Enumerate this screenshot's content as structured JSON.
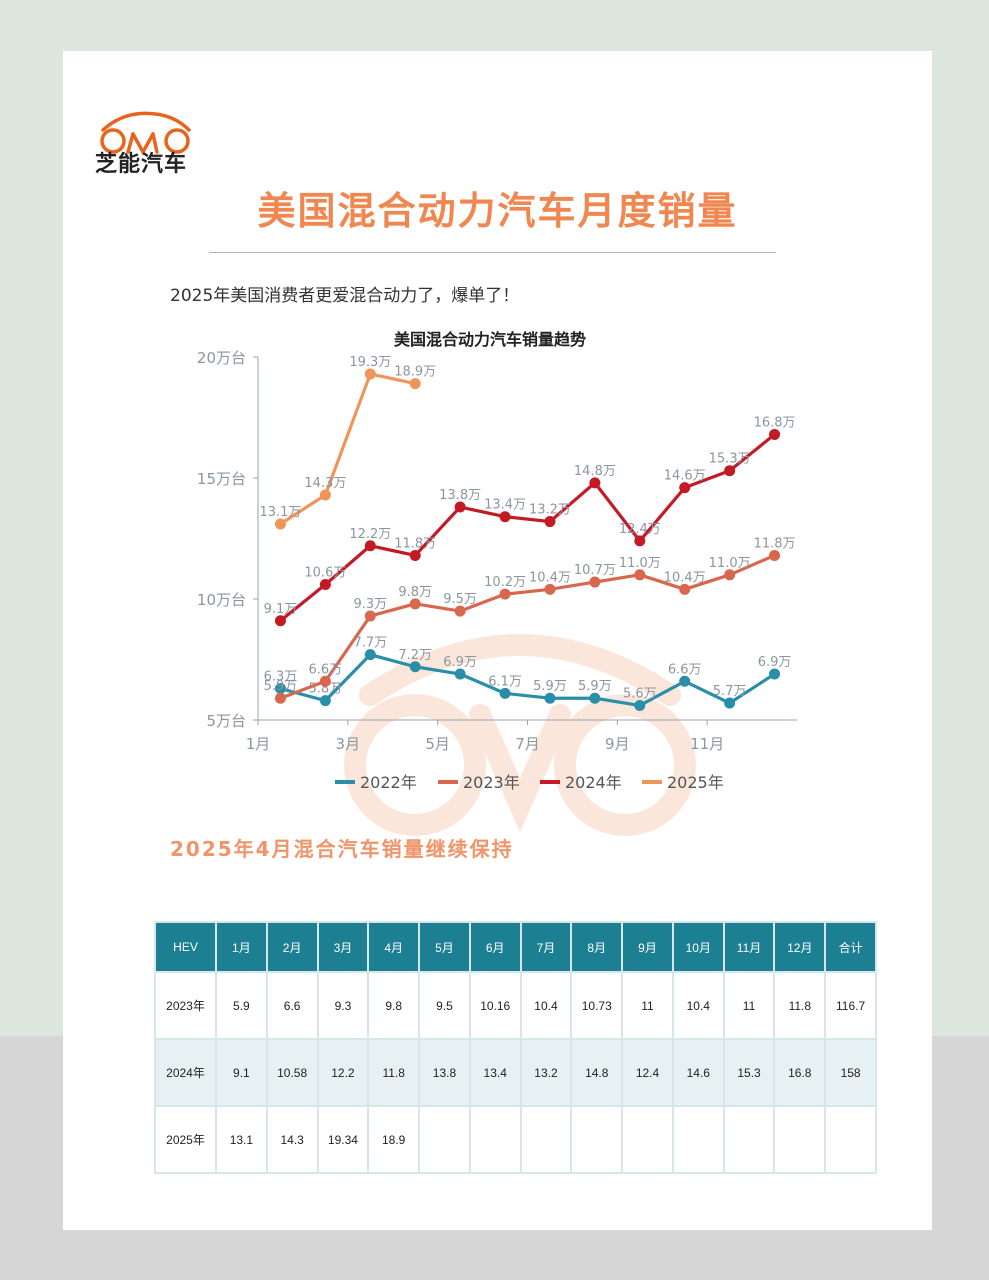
{
  "brand": {
    "name": "芝能汽车"
  },
  "header": {
    "title": "美国混合动力汽车月度销量",
    "subtitle": "2025年美国消费者更爱混合动力了，爆单了！"
  },
  "colors": {
    "accent": "#f08650",
    "series_2022": "#2a8ea8",
    "series_2023": "#d8674e",
    "series_2024": "#c41a24",
    "series_2025": "#f0955a",
    "table_header": "#1d7f92"
  },
  "chart_data": {
    "type": "line",
    "title": "美国混合动力汽车销量趋势",
    "ylim": [
      5,
      20
    ],
    "xlim": [
      1,
      13
    ],
    "y_ticks": [
      {
        "value": 5,
        "label": "5万台"
      },
      {
        "value": 10,
        "label": "10万台"
      },
      {
        "value": 15,
        "label": "15万台"
      },
      {
        "value": 20,
        "label": "20万台"
      }
    ],
    "x_ticks": [
      {
        "value": 1,
        "label": "1月"
      },
      {
        "value": 3,
        "label": "3月"
      },
      {
        "value": 5,
        "label": "5月"
      },
      {
        "value": 7,
        "label": "7月"
      },
      {
        "value": 9,
        "label": "9月"
      },
      {
        "value": 11,
        "label": "11月"
      }
    ],
    "grid": false,
    "legend": "bottom",
    "series": [
      {
        "name": "2022年",
        "color": "#2a8ea8",
        "x": [
          1.5,
          2.5,
          3.5,
          4.5,
          5.5,
          6.5,
          7.5,
          8.5,
          9.5,
          10.5,
          11.5,
          12.5
        ],
        "values": [
          6.3,
          5.8,
          7.7,
          7.2,
          6.9,
          6.1,
          5.9,
          5.9,
          5.6,
          6.6,
          5.7,
          6.9
        ],
        "labels": [
          "6.3万",
          "5.8万",
          "7.7万",
          "7.2万",
          "6.9万",
          "6.1万",
          "5.9万",
          "5.9万",
          "5.6万",
          "6.6万",
          "5.7万",
          "6.9万"
        ]
      },
      {
        "name": "2023年",
        "color": "#d8674e",
        "x": [
          1.5,
          2.5,
          3.5,
          4.5,
          5.5,
          6.5,
          7.5,
          8.5,
          9.5,
          10.5,
          11.5,
          12.5
        ],
        "values": [
          5.9,
          6.6,
          9.3,
          9.8,
          9.5,
          10.2,
          10.4,
          10.7,
          11.0,
          10.4,
          11.0,
          11.8
        ],
        "labels": [
          "5.9万",
          "6.6万",
          "9.3万",
          "9.8万",
          "9.5万",
          "10.2万",
          "10.4万",
          "10.7万",
          "11.0万",
          "10.4万",
          "11.0万",
          "11.8万"
        ]
      },
      {
        "name": "2024年",
        "color": "#c41a24",
        "x": [
          1.5,
          2.5,
          3.5,
          4.5,
          5.5,
          6.5,
          7.5,
          8.5,
          9.5,
          10.5,
          11.5,
          12.5
        ],
        "values": [
          9.1,
          10.6,
          12.2,
          11.8,
          13.8,
          13.4,
          13.2,
          14.8,
          12.4,
          14.6,
          15.3,
          16.8
        ],
        "labels": [
          "9.1万",
          "10.6万",
          "12.2万",
          "11.8万",
          "13.8万",
          "13.4万",
          "13.2万",
          "14.8万",
          "12.4万",
          "14.6万",
          "15.3万",
          "16.8万"
        ]
      },
      {
        "name": "2025年",
        "color": "#f0955a",
        "x": [
          1.5,
          2.5,
          3.5,
          4.5
        ],
        "values": [
          13.1,
          14.3,
          19.3,
          18.9
        ],
        "labels": [
          "13.1万",
          "14.3万",
          "19.3万",
          "18.9万"
        ]
      }
    ]
  },
  "section_heading": "2025年4月混合汽车销量继续保持",
  "table": {
    "headers": [
      "HEV",
      "1月",
      "2月",
      "3月",
      "4月",
      "5月",
      "6月",
      "7月",
      "8月",
      "9月",
      "10月",
      "11月",
      "12月",
      "合计"
    ],
    "rows": [
      [
        "2023年",
        "5.9",
        "6.6",
        "9.3",
        "9.8",
        "9.5",
        "10.16",
        "10.4",
        "10.73",
        "11",
        "10.4",
        "11",
        "11.8",
        "116.7"
      ],
      [
        "2024年",
        "9.1",
        "10.58",
        "12.2",
        "11.8",
        "13.8",
        "13.4",
        "13.2",
        "14.8",
        "12.4",
        "14.6",
        "15.3",
        "16.8",
        "158"
      ],
      [
        "2025年",
        "13.1",
        "14.3",
        "19.34",
        "18.9",
        "",
        "",
        "",
        "",
        "",
        "",
        "",
        "",
        ""
      ]
    ]
  }
}
